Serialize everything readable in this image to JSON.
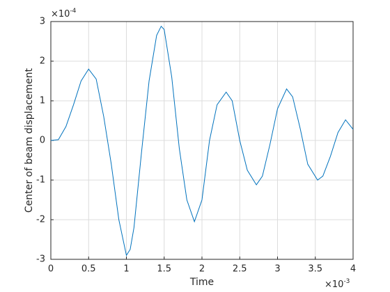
{
  "chart_data": {
    "type": "line",
    "xlabel": "Time",
    "ylabel": "Center of beam displacement",
    "x_exponent": {
      "base": "×10",
      "power": "-3"
    },
    "y_exponent": {
      "base": "×10",
      "power": "-4"
    },
    "x": [
      0,
      0.1,
      0.2,
      0.3,
      0.4,
      0.5,
      0.6,
      0.7,
      0.8,
      0.9,
      1.0,
      1.05,
      1.1,
      1.2,
      1.3,
      1.4,
      1.46,
      1.5,
      1.6,
      1.7,
      1.8,
      1.9,
      2.0,
      2.1,
      2.2,
      2.32,
      2.4,
      2.5,
      2.6,
      2.72,
      2.8,
      2.9,
      3.0,
      3.12,
      3.2,
      3.3,
      3.4,
      3.53,
      3.6,
      3.7,
      3.8,
      3.9,
      4.0
    ],
    "series": [
      {
        "color": "#0072bd",
        "values": [
          0,
          0.02,
          0.35,
          0.9,
          1.5,
          1.8,
          1.55,
          0.6,
          -0.6,
          -2.0,
          -2.9,
          -2.75,
          -2.2,
          -0.3,
          1.5,
          2.65,
          2.88,
          2.8,
          1.6,
          -0.2,
          -1.5,
          -2.05,
          -1.5,
          0.0,
          0.9,
          1.22,
          1.0,
          0.0,
          -0.75,
          -1.12,
          -0.9,
          -0.1,
          0.8,
          1.3,
          1.1,
          0.3,
          -0.6,
          -1.0,
          -0.9,
          -0.4,
          0.2,
          0.52,
          0.28
        ]
      }
    ],
    "xlim": [
      0,
      4
    ],
    "xticks": [
      0,
      0.5,
      1,
      1.5,
      2,
      2.5,
      3,
      3.5,
      4
    ],
    "ylim": [
      -3,
      3
    ],
    "yticks": [
      -3,
      -2,
      -1,
      0,
      1,
      2,
      3
    ],
    "grid": true
  }
}
